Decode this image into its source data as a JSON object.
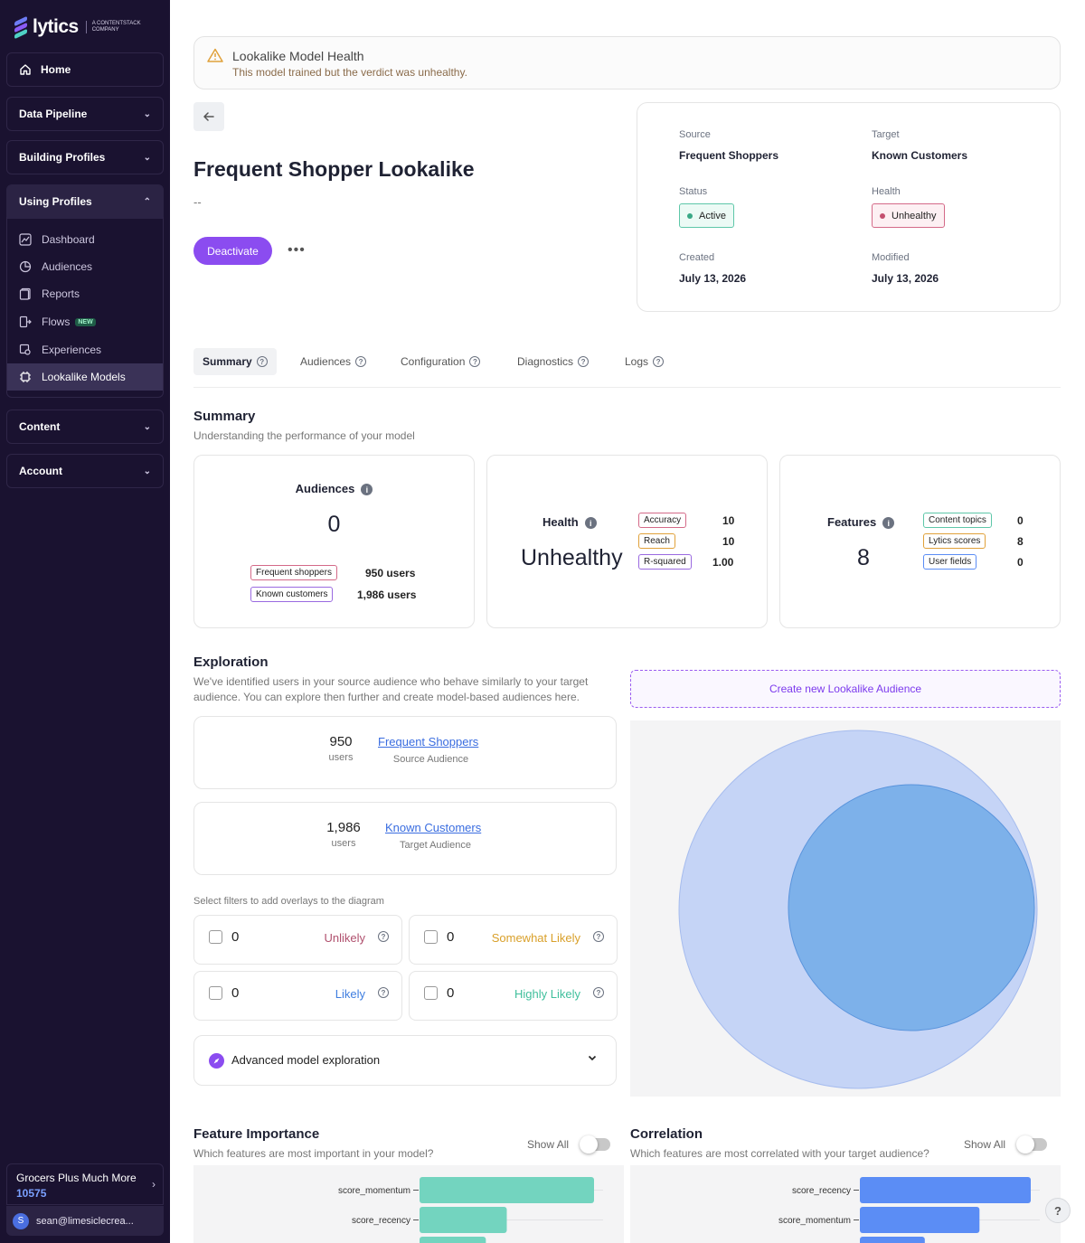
{
  "sidebar": {
    "brand": "lytics",
    "brand_sub": "A CONTENTSTACK COMPANY",
    "home": "Home",
    "data_pipeline": "Data Pipeline",
    "building_profiles": "Building Profiles",
    "using_profiles": "Using Profiles",
    "items": [
      {
        "label": "Dashboard",
        "icon": "chart-icon"
      },
      {
        "label": "Audiences",
        "icon": "pie-icon"
      },
      {
        "label": "Reports",
        "icon": "report-icon"
      },
      {
        "label": "Flows",
        "icon": "flow-icon",
        "badge": "NEW"
      },
      {
        "label": "Experiences",
        "icon": "experience-icon"
      },
      {
        "label": "Lookalike Models",
        "icon": "chip-icon"
      }
    ],
    "content": "Content",
    "account": "Account",
    "account_name": "Grocers Plus Much More",
    "account_id": "10575",
    "user_initial": "S",
    "user_email": "sean@limesiclecrea..."
  },
  "alert": {
    "title": "Lookalike Model Health",
    "message": "This model trained but the verdict was unhealthy."
  },
  "model": {
    "title": "Frequent Shopper Lookalike",
    "description": "--",
    "deactivate": "Deactivate"
  },
  "meta": {
    "source_label": "Source",
    "source": "Frequent Shoppers",
    "target_label": "Target",
    "target": "Known Customers",
    "status_label": "Status",
    "status": "Active",
    "health_label": "Health",
    "health": "Unhealthy",
    "created_label": "Created",
    "created": "July 13, 2026",
    "modified_label": "Modified",
    "modified": "July 13, 2026"
  },
  "tabs": [
    "Summary",
    "Audiences",
    "Configuration",
    "Diagnostics",
    "Logs"
  ],
  "summary": {
    "title": "Summary",
    "subtitle": "Understanding the performance of your model",
    "audiences": {
      "label": "Audiences",
      "value": "0",
      "rows": [
        {
          "tag": "Frequent shoppers",
          "value": "950 users"
        },
        {
          "tag": "Known customers",
          "value": "1,986 users"
        }
      ]
    },
    "health": {
      "label": "Health",
      "value": "Unhealthy",
      "rows": [
        {
          "tag": "Accuracy",
          "value": "10"
        },
        {
          "tag": "Reach",
          "value": "10"
        },
        {
          "tag": "R-squared",
          "value": "1.00"
        }
      ]
    },
    "features": {
      "label": "Features",
      "value": "8",
      "rows": [
        {
          "tag": "Content topics",
          "value": "0"
        },
        {
          "tag": "Lytics scores",
          "value": "8"
        },
        {
          "tag": "User fields",
          "value": "0"
        }
      ]
    }
  },
  "exploration": {
    "title": "Exploration",
    "subtitle_1": "We've identified users in your source audience who behave similarly to your target",
    "subtitle_2": "audience. You can explore then further and create model-based audiences here.",
    "source": {
      "count": "950",
      "unit": "users",
      "name": "Frequent Shoppers",
      "role": "Source Audience"
    },
    "target": {
      "count": "1,986",
      "unit": "users",
      "name": "Known Customers",
      "role": "Target Audience"
    },
    "filters_label": "Select filters to add overlays to the diagram",
    "filters": [
      {
        "count": "0",
        "label": "Unlikely",
        "color": "#b0506e"
      },
      {
        "count": "0",
        "label": "Somewhat Likely",
        "color": "#d9a02a"
      },
      {
        "count": "0",
        "label": "Likely",
        "color": "#3f7ee0"
      },
      {
        "count": "0",
        "label": "Highly Likely",
        "color": "#3fbf9c"
      }
    ],
    "advanced": "Advanced model exploration",
    "create_button": "Create new Lookalike Audience"
  },
  "feature_importance": {
    "title": "Feature Importance",
    "subtitle": "Which features are most important in your model?",
    "show_all": "Show All"
  },
  "correlation": {
    "title": "Correlation",
    "subtitle": "Which features are most correlated with your target audience?",
    "show_all": "Show All"
  },
  "chart_data": [
    {
      "type": "bar",
      "categories": [
        "score_momentum",
        "score_recency"
      ],
      "values": [
        1.0,
        0.5
      ],
      "color": "#73d4bf"
    },
    {
      "type": "bar",
      "categories": [
        "score_recency",
        "score_momentum"
      ],
      "values": [
        1.0,
        0.7
      ],
      "color": "#5b8df5"
    }
  ]
}
